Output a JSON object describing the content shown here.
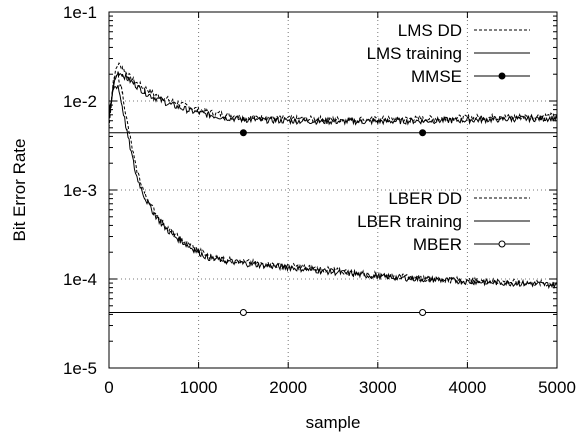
{
  "chart_data": {
    "type": "line",
    "xlabel": "sample",
    "ylabel": "Bit Error Rate",
    "xlim": [
      0,
      5000
    ],
    "ylim": [
      1e-05,
      0.1
    ],
    "yscale": "log",
    "grid": true,
    "legend_placement": "top-right",
    "x_ticks": [
      "0",
      "1000",
      "2000",
      "3000",
      "4000",
      "5000"
    ],
    "y_ticks": [
      "1e-5",
      "1e-4",
      "1e-3",
      "1e-2",
      "1e-1"
    ],
    "legend_groups": [
      {
        "placement": "top-right",
        "entries": [
          "LMS DD",
          "LMS training",
          "MMSE"
        ]
      },
      {
        "placement": "middle-right",
        "entries": [
          "LBER DD",
          "LBER training",
          "MBER"
        ]
      }
    ],
    "series": [
      {
        "name": "LMS DD",
        "style": "dashed",
        "x": [
          0,
          50,
          100,
          150,
          200,
          300,
          400,
          500,
          700,
          900,
          1100,
          1300,
          1500,
          2000,
          2500,
          3000,
          3500,
          4000,
          4500,
          5000
        ],
        "y": [
          0.005,
          0.018,
          0.026,
          0.024,
          0.02,
          0.016,
          0.014,
          0.012,
          0.01,
          0.0085,
          0.0075,
          0.007,
          0.0066,
          0.0063,
          0.0062,
          0.0062,
          0.0063,
          0.0065,
          0.0066,
          0.0068
        ]
      },
      {
        "name": "LMS training",
        "style": "solid",
        "x": [
          0,
          50,
          100,
          150,
          200,
          300,
          400,
          500,
          700,
          900,
          1100,
          1300,
          1500,
          2000,
          2500,
          3000,
          3500,
          4000,
          4500,
          5000
        ],
        "y": [
          0.006,
          0.015,
          0.021,
          0.02,
          0.018,
          0.015,
          0.0125,
          0.011,
          0.009,
          0.0078,
          0.007,
          0.0065,
          0.0062,
          0.006,
          0.0059,
          0.0059,
          0.006,
          0.0061,
          0.0063,
          0.0064
        ]
      },
      {
        "name": "MMSE",
        "style": "solid-marker-filled",
        "x": [
          0,
          1500,
          3500,
          5000
        ],
        "y": [
          0.0044,
          0.0044,
          0.0044,
          0.0044
        ],
        "markers_x": [
          1500,
          3500
        ]
      },
      {
        "name": "LBER DD",
        "style": "dashed",
        "x": [
          0,
          50,
          100,
          150,
          200,
          300,
          400,
          500,
          600,
          700,
          800,
          900,
          1000,
          1100,
          1300,
          1500,
          1800,
          2000,
          2500,
          3000,
          3500,
          4000,
          4500,
          5000
        ],
        "y": [
          0.006,
          0.016,
          0.02,
          0.0125,
          0.006,
          0.0018,
          0.0009,
          0.0006,
          0.00043,
          0.00034,
          0.00028,
          0.00024,
          0.00021,
          0.00018,
          0.000165,
          0.000155,
          0.000145,
          0.00014,
          0.000125,
          0.00011,
          0.000102,
          9.6e-05,
          9.2e-05,
          8.8e-05
        ]
      },
      {
        "name": "LBER training",
        "style": "solid",
        "x": [
          0,
          50,
          100,
          150,
          200,
          300,
          400,
          500,
          600,
          700,
          800,
          900,
          1000,
          1100,
          1300,
          1500,
          1800,
          2000,
          2500,
          3000,
          3500,
          4000,
          4500,
          5000
        ],
        "y": [
          0.007,
          0.014,
          0.015,
          0.0085,
          0.0045,
          0.0015,
          0.00082,
          0.00055,
          0.0004,
          0.00032,
          0.00027,
          0.00023,
          0.0002,
          0.000175,
          0.00016,
          0.00015,
          0.00014,
          0.000135,
          0.00012,
          0.000107,
          0.0001,
          9.4e-05,
          9e-05,
          8.6e-05
        ]
      },
      {
        "name": "MBER",
        "style": "solid-marker-open",
        "x": [
          0,
          1500,
          3500,
          5000
        ],
        "y": [
          4.2e-05,
          4.2e-05,
          4.2e-05,
          4.2e-05
        ],
        "markers_x": [
          1500,
          3500
        ]
      }
    ]
  }
}
